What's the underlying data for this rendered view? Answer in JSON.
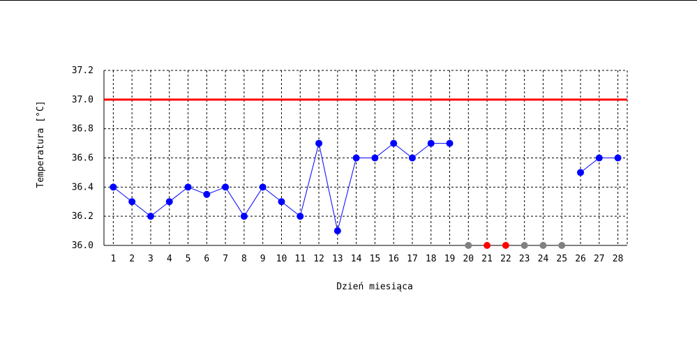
{
  "chart_data": {
    "type": "line",
    "title": "",
    "xlabel": "Dzień miesiąca",
    "ylabel": "Temperatura [°C]",
    "x": [
      1,
      2,
      3,
      4,
      5,
      6,
      7,
      8,
      9,
      10,
      11,
      12,
      13,
      14,
      15,
      16,
      17,
      18,
      19,
      20,
      21,
      22,
      23,
      24,
      25,
      26,
      27,
      28
    ],
    "ylim": [
      36.0,
      37.2
    ],
    "yticks": [
      "36.0",
      "36.2",
      "36.4",
      "36.6",
      "36.8",
      "37.0",
      "37.2"
    ],
    "grid": true,
    "reference_line": {
      "value": 37.0,
      "color": "#ff0000"
    },
    "series": [
      {
        "color": "#0000ff",
        "segments": [
          {
            "x": [
              1,
              2,
              3,
              4,
              5,
              6,
              7,
              8,
              9,
              10,
              11,
              12,
              13,
              14,
              15,
              16,
              17,
              18,
              19
            ],
            "y": [
              36.4,
              36.3,
              36.2,
              36.3,
              36.4,
              36.35,
              36.4,
              36.2,
              36.4,
              36.3,
              36.2,
              36.7,
              36.1,
              36.6,
              36.6,
              36.7,
              36.6,
              36.7,
              36.7
            ]
          },
          {
            "x": [
              26,
              27,
              28
            ],
            "y": [
              36.5,
              36.6,
              36.6
            ]
          }
        ]
      }
    ],
    "missing_markers": [
      {
        "x": 20,
        "color": "#808080"
      },
      {
        "x": 21,
        "color": "#ff0000"
      },
      {
        "x": 22,
        "color": "#ff0000"
      },
      {
        "x": 23,
        "color": "#808080"
      },
      {
        "x": 24,
        "color": "#808080"
      },
      {
        "x": 25,
        "color": "#808080"
      }
    ]
  }
}
